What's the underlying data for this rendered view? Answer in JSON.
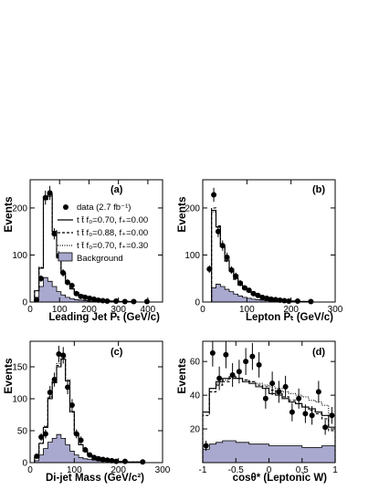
{
  "legend": {
    "data": "data (2.7 fb⁻¹)",
    "model_a": "t t̄  f₀=0.70, f₊=0.00",
    "model_b": "t t̄  f₀=0.88, f₊=0.00",
    "model_c": "t t̄  f₀=0.70, f₊=0.30",
    "background": "Background"
  },
  "colors": {
    "background_fill": "#a9a9cf",
    "line": "#000000"
  },
  "chart_data": [
    {
      "id": "a",
      "panel_label": "(a)",
      "type": "line",
      "xlabel": "Leading Jet Pₜ (GeV/c)",
      "ylabel": "Events",
      "xlim": [
        0,
        450
      ],
      "ylim": [
        0,
        260
      ],
      "xticks": [
        0,
        100,
        200,
        300,
        400
      ],
      "yticks": [
        0,
        100,
        200
      ],
      "x_tick_labels": [
        "0",
        "100",
        "200",
        "300",
        "400"
      ],
      "y_tick_labels": [
        "0",
        "100",
        "200"
      ],
      "bin_edges": [
        15,
        30,
        45,
        60,
        75,
        90,
        105,
        120,
        135,
        150,
        165,
        180,
        195,
        210,
        225,
        240,
        255,
        270,
        285,
        300,
        315,
        330,
        345,
        360,
        375,
        390,
        405,
        420,
        435
      ],
      "background": [
        10,
        33,
        52,
        44,
        33,
        22,
        15,
        10,
        7,
        5,
        4,
        3,
        2,
        2,
        1,
        1,
        1,
        0,
        0,
        0,
        0,
        0,
        0,
        0,
        0,
        0,
        0,
        0
      ],
      "series": [
        {
          "values": [
            24,
            72,
            218,
            225,
            150,
            95,
            62,
            40,
            28,
            20,
            15,
            11,
            8,
            6,
            5,
            4,
            3,
            2,
            2,
            1,
            1,
            1,
            1,
            0,
            0,
            0,
            0,
            0
          ]
        },
        {
          "values": [
            24,
            73,
            222,
            228,
            150,
            94,
            61,
            40,
            28,
            20,
            14,
            11,
            8,
            6,
            5,
            4,
            3,
            2,
            2,
            1,
            1,
            1,
            1,
            0,
            0,
            0,
            0,
            0
          ]
        },
        {
          "values": [
            24,
            74,
            224,
            230,
            152,
            95,
            62,
            40,
            28,
            20,
            15,
            11,
            8,
            6,
            5,
            4,
            3,
            2,
            2,
            1,
            1,
            1,
            1,
            0,
            0,
            0,
            0,
            0
          ]
        }
      ],
      "data_points": {
        "x": [
          22,
          37,
          52,
          67,
          82,
          97,
          112,
          127,
          142,
          157,
          172,
          187,
          202,
          217,
          232,
          247,
          262,
          292,
          322,
          352,
          397
        ],
        "y": [
          5,
          50,
          222,
          232,
          145,
          98,
          62,
          42,
          35,
          18,
          12,
          10,
          8,
          6,
          4,
          3,
          2,
          2,
          1,
          1,
          1
        ],
        "err": [
          3,
          7,
          15,
          15,
          12,
          10,
          8,
          6.5,
          6,
          4.5,
          3.5,
          3,
          3,
          2.5,
          2,
          2,
          1.5,
          1.5,
          1,
          1,
          1
        ]
      }
    },
    {
      "id": "b",
      "panel_label": "(b)",
      "type": "line",
      "xlabel": "Lepton Pₜ (GeV/c)",
      "ylabel": "Events",
      "xlim": [
        0,
        300
      ],
      "ylim": [
        0,
        260
      ],
      "xticks": [
        0,
        100,
        200,
        300
      ],
      "yticks": [
        0,
        100,
        200
      ],
      "x_tick_labels": [
        "0",
        "100",
        "200",
        "300"
      ],
      "y_tick_labels": [
        "0",
        "100",
        "200"
      ],
      "bin_edges": [
        20,
        30,
        40,
        50,
        60,
        70,
        80,
        90,
        100,
        110,
        120,
        130,
        140,
        150,
        160,
        170,
        180,
        190,
        200,
        210,
        220,
        230,
        240,
        250,
        260,
        270,
        280,
        290,
        300
      ],
      "background": [
        30,
        38,
        33,
        27,
        22,
        17,
        13,
        10,
        8,
        6,
        5,
        4,
        3,
        2,
        2,
        1,
        1,
        1,
        1,
        0,
        0,
        0,
        0,
        0,
        0,
        0,
        0,
        0
      ],
      "series": [
        {
          "values": [
            195,
            160,
            118,
            88,
            68,
            50,
            38,
            30,
            22,
            17,
            13,
            10,
            8,
            6,
            5,
            4,
            3,
            2,
            2,
            1,
            1,
            1,
            1,
            0,
            0,
            0,
            0,
            0
          ]
        },
        {
          "values": [
            200,
            162,
            118,
            87,
            66,
            48,
            36,
            28,
            21,
            16,
            12,
            9,
            7,
            5,
            4,
            3,
            3,
            2,
            2,
            1,
            1,
            1,
            1,
            0,
            0,
            0,
            0,
            0
          ]
        },
        {
          "values": [
            192,
            158,
            120,
            92,
            72,
            55,
            42,
            33,
            25,
            19,
            15,
            11,
            9,
            7,
            5,
            4,
            3,
            2,
            2,
            1,
            1,
            1,
            1,
            0,
            0,
            0,
            0,
            0
          ]
        }
      ],
      "data_points": {
        "x": [
          15,
          25,
          35,
          45,
          55,
          65,
          75,
          85,
          95,
          105,
          115,
          125,
          135,
          145,
          155,
          165,
          175,
          185,
          195,
          215,
          245
        ],
        "y": [
          70,
          228,
          150,
          120,
          95,
          68,
          55,
          40,
          30,
          25,
          18,
          14,
          10,
          8,
          6,
          5,
          4,
          3,
          2,
          2,
          1
        ],
        "err": [
          8,
          15,
          12,
          11,
          10,
          8,
          7.5,
          6.5,
          5.5,
          5,
          4.5,
          4,
          3.5,
          3,
          2.5,
          2.5,
          2,
          2,
          1.5,
          1.5,
          1
        ]
      }
    },
    {
      "id": "c",
      "panel_label": "(c)",
      "type": "line",
      "xlabel": "Di-jet Mass (GeV/c²)",
      "ylabel": "Events",
      "xlim": [
        0,
        300
      ],
      "ylim": [
        0,
        190
      ],
      "xticks": [
        0,
        100,
        200,
        300
      ],
      "yticks": [
        0,
        50,
        100,
        150
      ],
      "x_tick_labels": [
        "0",
        "100",
        "200",
        "300"
      ],
      "y_tick_labels": [
        "0",
        "50",
        "100",
        "150"
      ],
      "bin_edges": [
        10,
        20,
        30,
        40,
        50,
        60,
        70,
        80,
        90,
        100,
        110,
        120,
        130,
        140,
        150,
        160,
        170,
        180,
        190,
        200,
        210,
        220,
        230,
        240,
        250,
        260,
        270,
        280,
        290,
        300
      ],
      "background": [
        3,
        12,
        22,
        32,
        38,
        44,
        38,
        28,
        18,
        12,
        8,
        6,
        5,
        4,
        3,
        2,
        2,
        1,
        1,
        1,
        1,
        0,
        0,
        0,
        0,
        0,
        0,
        0,
        0
      ],
      "series": [
        {
          "values": [
            8,
            30,
            55,
            100,
            125,
            150,
            162,
            128,
            80,
            45,
            28,
            18,
            12,
            9,
            7,
            5,
            4,
            3,
            2,
            2,
            1,
            1,
            1,
            1,
            0,
            0,
            0,
            0,
            0
          ]
        },
        {
          "values": [
            8,
            30,
            56,
            101,
            126,
            152,
            164,
            128,
            79,
            45,
            28,
            18,
            12,
            9,
            7,
            5,
            4,
            3,
            2,
            2,
            1,
            1,
            1,
            1,
            0,
            0,
            0,
            0,
            0
          ]
        },
        {
          "values": [
            8,
            31,
            57,
            103,
            128,
            155,
            166,
            130,
            80,
            45,
            28,
            18,
            12,
            9,
            7,
            5,
            4,
            3,
            2,
            2,
            1,
            1,
            1,
            1,
            0,
            0,
            0,
            0,
            0
          ]
        }
      ],
      "data_points": {
        "x": [
          15,
          25,
          35,
          45,
          55,
          65,
          75,
          85,
          95,
          105,
          115,
          125,
          135,
          145,
          155,
          165,
          175,
          185,
          195,
          215,
          255
        ],
        "y": [
          10,
          40,
          45,
          110,
          130,
          170,
          168,
          118,
          90,
          45,
          35,
          20,
          12,
          8,
          6,
          5,
          4,
          3,
          2,
          2,
          1
        ],
        "err": [
          3,
          6,
          7,
          10,
          11,
          13,
          13,
          11,
          9.5,
          7,
          6,
          4.5,
          3.5,
          3,
          2.5,
          2.5,
          2,
          2,
          1.5,
          1.5,
          1
        ]
      }
    },
    {
      "id": "d",
      "panel_label": "(d)",
      "type": "line",
      "xlabel": "cosθ* (Leptonic W)",
      "ylabel": "Events",
      "xlim": [
        -1,
        1
      ],
      "ylim": [
        0,
        72
      ],
      "xticks": [
        -1,
        -0.5,
        0,
        0.5,
        1
      ],
      "yticks": [
        20,
        40,
        60
      ],
      "x_tick_labels": [
        "-1",
        "-0.5",
        "0",
        "0.5",
        "1"
      ],
      "y_tick_labels": [
        "20",
        "40",
        "60"
      ],
      "bin_edges": [
        -1,
        -0.9,
        -0.8,
        -0.7,
        -0.6,
        -0.5,
        -0.4,
        -0.3,
        -0.2,
        -0.1,
        0,
        0.1,
        0.2,
        0.3,
        0.4,
        0.5,
        0.6,
        0.7,
        0.8,
        0.9,
        1
      ],
      "background": [
        8,
        11,
        12,
        13,
        13,
        12,
        12,
        11,
        11,
        11,
        10,
        10,
        10,
        10,
        10,
        9,
        9,
        9,
        10,
        10
      ],
      "series": [
        {
          "values": [
            30,
            44,
            48,
            50,
            51,
            50,
            48,
            47,
            45,
            44,
            41,
            40,
            38,
            36,
            35,
            33,
            32,
            30,
            28,
            21
          ]
        },
        {
          "values": [
            28,
            42,
            46,
            48,
            50,
            50,
            49,
            48,
            46,
            45,
            43,
            41,
            39,
            37,
            35,
            33,
            31,
            29,
            26,
            19
          ]
        },
        {
          "values": [
            30,
            44,
            47,
            49,
            50,
            50,
            49,
            48,
            47,
            46,
            45,
            44,
            42,
            41,
            40,
            39,
            37,
            36,
            34,
            28
          ]
        }
      ],
      "data_points": {
        "x": [
          -0.95,
          -0.85,
          -0.75,
          -0.65,
          -0.55,
          -0.45,
          -0.35,
          -0.25,
          -0.15,
          -0.05,
          0.05,
          0.15,
          0.25,
          0.35,
          0.45,
          0.55,
          0.65,
          0.75,
          0.85,
          0.95
        ],
        "y": [
          10,
          65,
          50,
          64,
          52,
          54,
          60,
          63,
          58,
          38,
          47,
          42,
          45,
          30,
          38,
          29,
          28,
          42,
          21,
          28
        ],
        "err": [
          3,
          8,
          7,
          8,
          7,
          7,
          8,
          8,
          7.5,
          6,
          7,
          6.5,
          6.5,
          5.5,
          6,
          5.5,
          5.5,
          6.5,
          4.5,
          5
        ]
      }
    }
  ]
}
